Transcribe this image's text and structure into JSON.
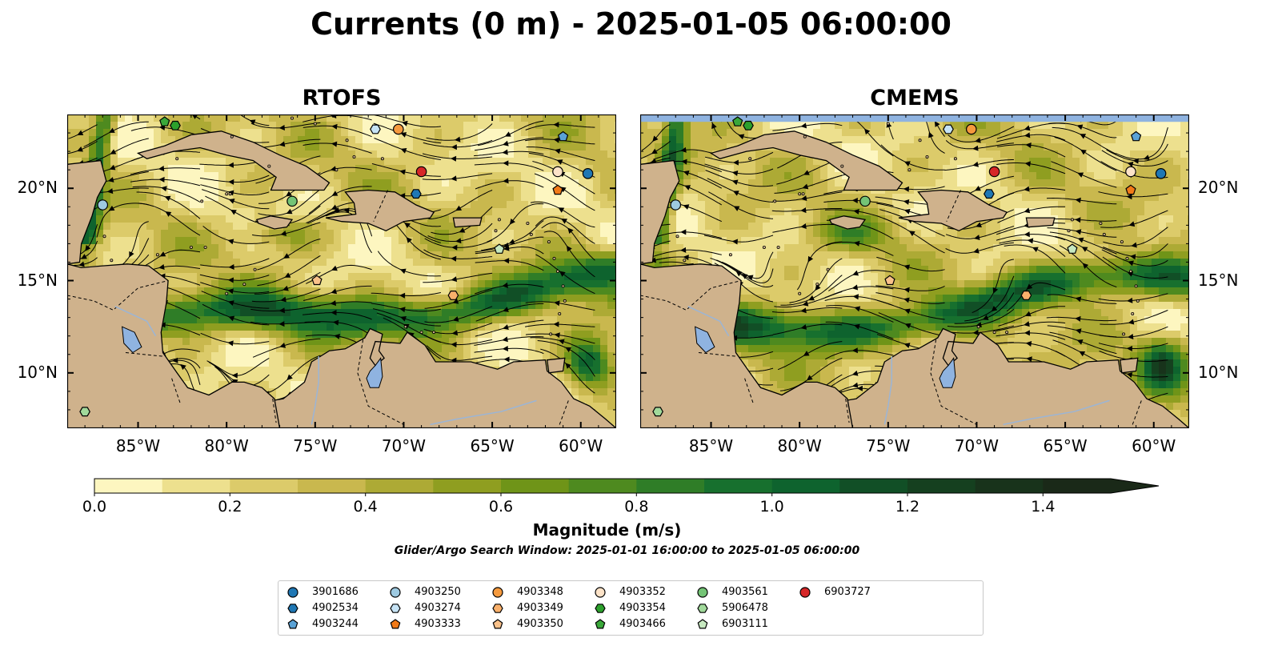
{
  "title": "Currents (0 m) - 2025-01-05 06:00:00",
  "panels": [
    {
      "title": "RTOFS"
    },
    {
      "title": "CMEMS"
    }
  ],
  "map_extent": {
    "lon": [
      -89,
      -58
    ],
    "lat": [
      7,
      24
    ]
  },
  "lon_ticks": [
    "85°W",
    "80°W",
    "75°W",
    "70°W",
    "65°W",
    "60°W"
  ],
  "lat_ticks": [
    "20°N",
    "15°N",
    "10°N"
  ],
  "lon_tick_values": [
    -85,
    -80,
    -75,
    -70,
    -65,
    -60
  ],
  "lat_tick_values": [
    20,
    15,
    10
  ],
  "colors": {
    "land": "#cfb28c",
    "water": "#8fb3e0",
    "streamline": "#000000"
  },
  "colorbar": {
    "label": "Magnitude (m/s)",
    "min": 0.0,
    "max": 1.5,
    "extend": "max",
    "tick_labels": [
      "0.0",
      "0.2",
      "0.4",
      "0.6",
      "0.8",
      "1.0",
      "1.2",
      "1.4"
    ],
    "tick_values": [
      0.0,
      0.2,
      0.4,
      0.6,
      0.8,
      1.0,
      1.2,
      1.4
    ],
    "colors": [
      "#fdf6c0",
      "#ede08e",
      "#dccb6a",
      "#c9b84e",
      "#adaa35",
      "#8f9e20",
      "#6f9418",
      "#4e8a1f",
      "#2f7d27",
      "#17702e",
      "#0e632e",
      "#114f26",
      "#15401f",
      "#18331b",
      "#1a2918"
    ]
  },
  "search_window": "Glider/Argo Search Window: 2025-01-01 16:00:00 to 2025-01-05 06:00:00",
  "legend": [
    {
      "id": "3901686",
      "marker": "circle",
      "color": "#1f77b4"
    },
    {
      "id": "4902534",
      "marker": "hexagon",
      "color": "#1f77b4"
    },
    {
      "id": "4903244",
      "marker": "pentagon",
      "color": "#5aa2d6"
    },
    {
      "id": "4903250",
      "marker": "circle",
      "color": "#9ecae1"
    },
    {
      "id": "4903274",
      "marker": "hexagon",
      "color": "#c6e3f5"
    },
    {
      "id": "4903333",
      "marker": "pentagon",
      "color": "#f17a18"
    },
    {
      "id": "4903348",
      "marker": "circle",
      "color": "#f59a3e"
    },
    {
      "id": "4903349",
      "marker": "hexagon",
      "color": "#f9b06b"
    },
    {
      "id": "4903350",
      "marker": "pentagon",
      "color": "#f9c18a"
    },
    {
      "id": "4903352",
      "marker": "circle",
      "color": "#fde3c8"
    },
    {
      "id": "4903354",
      "marker": "hexagon",
      "color": "#2ca02c"
    },
    {
      "id": "4903466",
      "marker": "pentagon",
      "color": "#3aa83a"
    },
    {
      "id": "4903561",
      "marker": "circle",
      "color": "#74c476"
    },
    {
      "id": "5906478",
      "marker": "hexagon",
      "color": "#a1d99b"
    },
    {
      "id": "6903111",
      "marker": "pentagon",
      "color": "#c7e9c0"
    },
    {
      "id": "6903727",
      "marker": "circle",
      "color": "#d62728"
    }
  ],
  "floats": [
    {
      "id": "3901686",
      "lon": -59.6,
      "lat": 20.8
    },
    {
      "id": "4902534",
      "lon": -69.3,
      "lat": 19.7
    },
    {
      "id": "4903244",
      "lon": -61.0,
      "lat": 22.8
    },
    {
      "id": "4903250",
      "lon": -87.0,
      "lat": 19.1
    },
    {
      "id": "4903274",
      "lon": -71.6,
      "lat": 23.2
    },
    {
      "id": "4903333",
      "lon": -61.3,
      "lat": 19.9
    },
    {
      "id": "4903348",
      "lon": -70.3,
      "lat": 23.2
    },
    {
      "id": "4903349",
      "lon": -67.2,
      "lat": 14.2
    },
    {
      "id": "4903350",
      "lon": -74.9,
      "lat": 15.0
    },
    {
      "id": "4903352",
      "lon": -61.3,
      "lat": 20.9
    },
    {
      "id": "4903354",
      "lon": -82.9,
      "lat": 23.4
    },
    {
      "id": "4903466",
      "lon": -83.5,
      "lat": 23.6
    },
    {
      "id": "4903561",
      "lon": -76.3,
      "lat": 19.3
    },
    {
      "id": "5906478",
      "lon": -88.0,
      "lat": 7.9
    },
    {
      "id": "6903111",
      "lon": -64.6,
      "lat": 16.7
    },
    {
      "id": "6903727",
      "lon": -69.0,
      "lat": 20.9
    }
  ]
}
